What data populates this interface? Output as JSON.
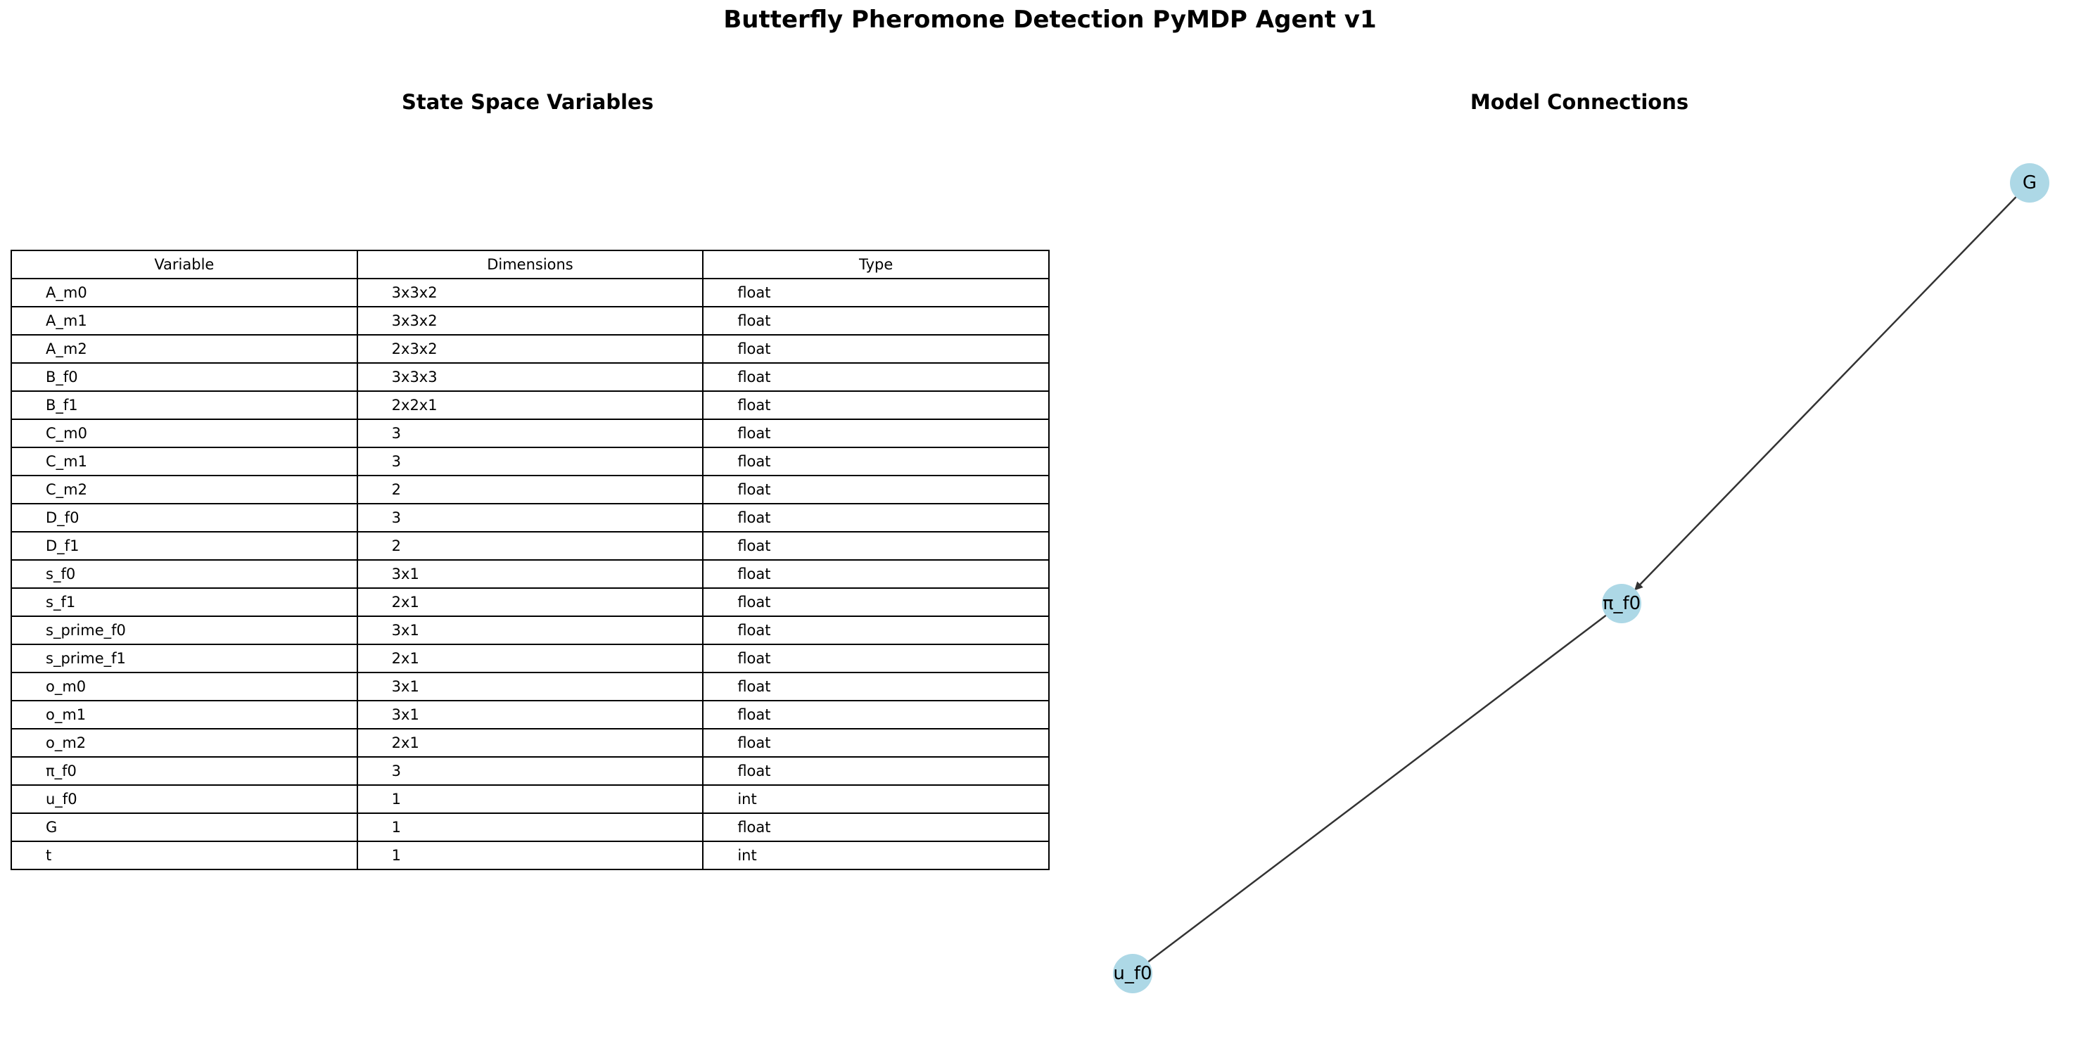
{
  "title": "Butterfly Pheromone Detection PyMDP Agent v1",
  "left_panel": {
    "title": "State Space Variables",
    "columns": [
      "Variable",
      "Dimensions",
      "Type"
    ],
    "rows": [
      [
        "A_m0",
        "3x3x2",
        "float"
      ],
      [
        "A_m1",
        "3x3x2",
        "float"
      ],
      [
        "A_m2",
        "2x3x2",
        "float"
      ],
      [
        "B_f0",
        "3x3x3",
        "float"
      ],
      [
        "B_f1",
        "2x2x1",
        "float"
      ],
      [
        "C_m0",
        "3",
        "float"
      ],
      [
        "C_m1",
        "3",
        "float"
      ],
      [
        "C_m2",
        "2",
        "float"
      ],
      [
        "D_f0",
        "3",
        "float"
      ],
      [
        "D_f1",
        "2",
        "float"
      ],
      [
        "s_f0",
        "3x1",
        "float"
      ],
      [
        "s_f1",
        "2x1",
        "float"
      ],
      [
        "s_prime_f0",
        "3x1",
        "float"
      ],
      [
        "s_prime_f1",
        "2x1",
        "float"
      ],
      [
        "o_m0",
        "3x1",
        "float"
      ],
      [
        "o_m1",
        "3x1",
        "float"
      ],
      [
        "o_m2",
        "2x1",
        "float"
      ],
      [
        "π_f0",
        "3",
        "float"
      ],
      [
        "u_f0",
        "1",
        "int"
      ],
      [
        "G",
        "1",
        "float"
      ],
      [
        "t",
        "1",
        "int"
      ]
    ]
  },
  "right_panel": {
    "title": "Model Connections",
    "nodes": [
      {
        "id": "G",
        "label": "G"
      },
      {
        "id": "pi_f0",
        "label": "π_f0"
      },
      {
        "id": "u_f0",
        "label": "u_f0"
      }
    ],
    "edges": [
      {
        "from": "G",
        "to": "pi_f0",
        "directed": true
      },
      {
        "from": "u_f0",
        "to": "pi_f0",
        "directed": false
      }
    ],
    "node_color": "#add8e6",
    "edge_color": "#333333"
  }
}
